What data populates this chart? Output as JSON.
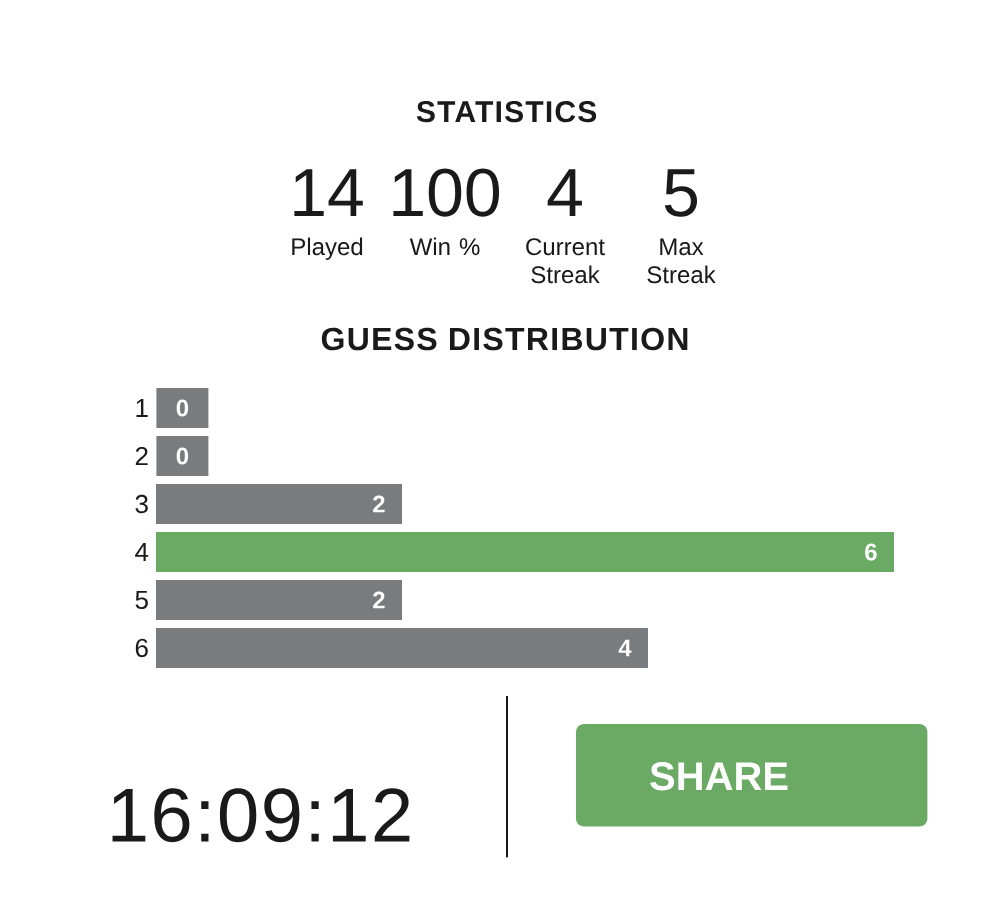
{
  "chart_data": [
    {
      "type": "other",
      "title": "STATISTICS",
      "annotations": [
        "14",
        "Played",
        "100",
        "Win %",
        "4",
        "Current Streak",
        "5",
        "Max Streak"
      ]
    },
    {
      "type": "bar",
      "title": "GUESS DISTRIBUTION",
      "orientation": "horizontal",
      "categories": [
        "1",
        "2",
        "3",
        "4",
        "5",
        "6"
      ],
      "values": [
        0,
        0,
        2,
        6,
        2,
        4
      ],
      "colors": [
        "#787c7e",
        "#787c7e",
        "#787c7e",
        "#6aaa64",
        "#787c7e",
        "#787c7e"
      ],
      "data_labels": true
    },
    {
      "type": "other",
      "annotations": [
        "16:09:12",
        "SHARE"
      ]
    }
  ]
}
